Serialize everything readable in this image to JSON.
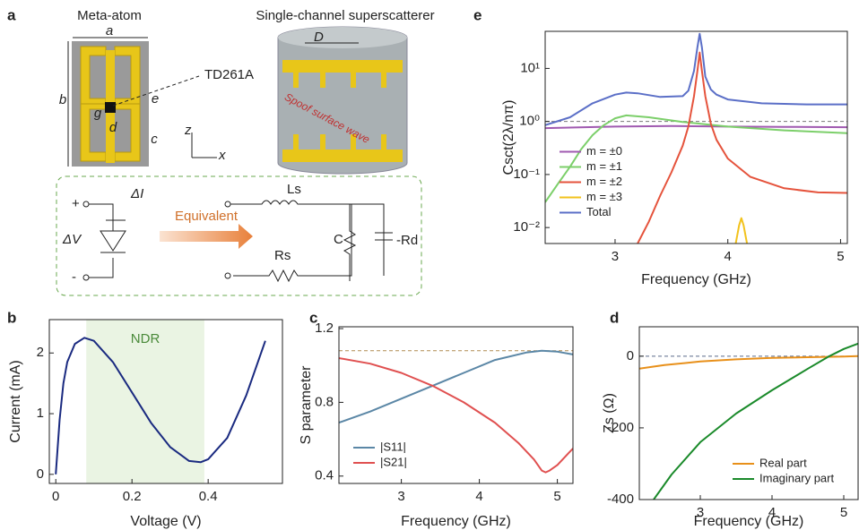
{
  "diagram": {
    "panel": "a",
    "meta_title": "Meta-atom",
    "dim_a": "a",
    "dim_b": "b",
    "dim_g": "g",
    "dim_d": "d",
    "dim_e": "e",
    "dim_c": "c",
    "diode": "TD261A",
    "scatter_title": "Single-channel superscatterer",
    "dim_D": "D",
    "wave": "Spoof surface wave",
    "axis_z": "z",
    "axis_x": "x",
    "plus": "+",
    "minus": "-",
    "current": "ΔI",
    "voltage": "ΔV",
    "arrow": "Equivalent",
    "ls": "Ls",
    "rs": "Rs",
    "cap": "C",
    "rd": "-Rd"
  },
  "chart_data": [
    {
      "type": "line",
      "panel": "b",
      "xlabel": "Voltage (V)",
      "ylabel": "Current (mA)",
      "xlim": [
        -0.017,
        0.595
      ],
      "ylim": [
        -0.15,
        2.55
      ],
      "xticks": [
        0,
        0.2,
        0.4
      ],
      "yticks": [
        0,
        1,
        2
      ],
      "shade": {
        "from": 0.08,
        "to": 0.39,
        "label": "NDR",
        "color": "#eaf4e3"
      },
      "x": [
        0,
        0.01,
        0.02,
        0.03,
        0.05,
        0.075,
        0.1,
        0.15,
        0.2,
        0.25,
        0.3,
        0.35,
        0.38,
        0.4,
        0.45,
        0.5,
        0.55
      ],
      "series": [
        {
          "color": "#1a2a80",
          "values": [
            0,
            0.9,
            1.5,
            1.85,
            2.15,
            2.25,
            2.2,
            1.85,
            1.35,
            0.85,
            0.45,
            0.22,
            0.2,
            0.25,
            0.6,
            1.3,
            2.2
          ]
        }
      ]
    },
    {
      "type": "line",
      "panel": "c",
      "xlabel": "Frequency (GHz)",
      "ylabel": "S parameter",
      "xlim": [
        2.2,
        5.2
      ],
      "ylim": [
        0.36,
        1.21
      ],
      "xticks": [
        3,
        4,
        5
      ],
      "yticks": [
        0.4,
        0.8,
        1.2
      ],
      "hline": 1.08,
      "hline_color": "#b08a50",
      "legend": "lower left",
      "series": [
        {
          "name": "|S11|",
          "color": "#5b87a6",
          "x": [
            2.2,
            2.6,
            3,
            3.4,
            3.8,
            4.2,
            4.6,
            4.8,
            5,
            5.2
          ],
          "values": [
            0.69,
            0.75,
            0.82,
            0.89,
            0.96,
            1.03,
            1.07,
            1.08,
            1.075,
            1.06
          ]
        },
        {
          "name": "|S21|",
          "color": "#e05050",
          "x": [
            2.2,
            2.6,
            3,
            3.4,
            3.8,
            4.2,
            4.5,
            4.7,
            4.8,
            4.85,
            4.9,
            5,
            5.2
          ],
          "values": [
            1.04,
            1.01,
            0.96,
            0.89,
            0.8,
            0.69,
            0.58,
            0.49,
            0.43,
            0.42,
            0.43,
            0.46,
            0.55
          ]
        }
      ]
    },
    {
      "type": "line",
      "panel": "d",
      "xlabel": "Frequency (GHz)",
      "ylabel": "Zs (Ω)",
      "xlim": [
        2.15,
        5.2
      ],
      "ylim": [
        -400,
        82
      ],
      "xticks": [
        3,
        4,
        5
      ],
      "yticks": [
        -400,
        -200,
        0
      ],
      "hline": 0,
      "hline_color": "#5a6a8a",
      "legend": "lower right",
      "series": [
        {
          "name": "Real part",
          "color": "#e8901a",
          "x": [
            2.15,
            2.5,
            3,
            3.5,
            4,
            4.5,
            5,
            5.2
          ],
          "values": [
            -35,
            -25,
            -15,
            -9,
            -5,
            -3,
            -1,
            0
          ]
        },
        {
          "name": "Imaginary part",
          "color": "#1a8a2a",
          "x": [
            2.35,
            2.6,
            3,
            3.5,
            4,
            4.5,
            4.8,
            5,
            5.2
          ],
          "values": [
            -400,
            -330,
            -240,
            -160,
            -95,
            -35,
            0,
            20,
            35
          ]
        }
      ]
    },
    {
      "type": "line",
      "panel": "e",
      "xlabel": "Frequency (GHz)",
      "ylabel": "Csct(2λ/nπ)",
      "log_y": true,
      "xlim": [
        2.38,
        5.06
      ],
      "ylim": [
        0.005,
        50
      ],
      "xticks": [
        3,
        4,
        5
      ],
      "yticks": [
        {
          "value": 0.01,
          "label": "10⁻²"
        },
        {
          "value": 0.1,
          "label": "10⁻¹"
        },
        {
          "value": 1,
          "label": "10⁰"
        },
        {
          "value": 10,
          "label": "10¹"
        }
      ],
      "hline": 1,
      "hline_color": "#777",
      "legend": "center left",
      "series": [
        {
          "name": "m = ±0",
          "color": "#a05ab0",
          "x": [
            2.38,
            3,
            3.5,
            4,
            4.5,
            5.06
          ],
          "values": [
            0.75,
            0.8,
            0.82,
            0.8,
            0.79,
            0.78
          ]
        },
        {
          "name": "m = ±1",
          "color": "#7ccf6a",
          "x": [
            2.38,
            2.5,
            2.6,
            2.7,
            2.8,
            2.9,
            3,
            3.1,
            3.3,
            3.6,
            4,
            4.5,
            5.06
          ],
          "values": [
            0.03,
            0.07,
            0.14,
            0.3,
            0.55,
            0.85,
            1.15,
            1.3,
            1.2,
            0.98,
            0.8,
            0.68,
            0.6
          ]
        },
        {
          "name": "m = ±2",
          "color": "#e5533c",
          "x": [
            3.2,
            3.3,
            3.4,
            3.5,
            3.6,
            3.65,
            3.7,
            3.73,
            3.75,
            3.77,
            3.8,
            3.85,
            3.9,
            4,
            4.2,
            4.5,
            4.8,
            5.06
          ],
          "values": [
            0.005,
            0.013,
            0.04,
            0.11,
            0.35,
            0.8,
            3,
            9,
            20,
            9,
            3,
            0.9,
            0.45,
            0.2,
            0.09,
            0.055,
            0.046,
            0.045
          ]
        },
        {
          "name": "m = ±3",
          "color": "#f2c21c",
          "x": [
            4.07,
            4.1,
            4.12,
            4.14,
            4.17
          ],
          "values": [
            0.005,
            0.011,
            0.015,
            0.011,
            0.005
          ]
        },
        {
          "name": "Total",
          "color": "#5b6fc7",
          "x": [
            2.38,
            2.6,
            2.8,
            3,
            3.1,
            3.2,
            3.4,
            3.6,
            3.65,
            3.7,
            3.73,
            3.75,
            3.77,
            3.8,
            3.85,
            3.9,
            4,
            4.3,
            4.7,
            5.06
          ],
          "values": [
            0.85,
            1.2,
            2.2,
            3.2,
            3.5,
            3.4,
            2.9,
            3,
            3.8,
            9,
            25,
            45,
            25,
            7,
            4,
            3.2,
            2.6,
            2.2,
            2.1,
            2.1
          ]
        }
      ]
    }
  ]
}
